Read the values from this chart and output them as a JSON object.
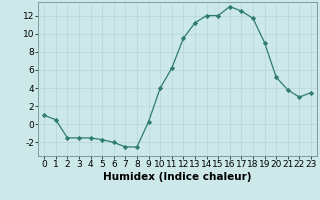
{
  "x": [
    0,
    1,
    2,
    3,
    4,
    5,
    6,
    7,
    8,
    9,
    10,
    11,
    12,
    13,
    14,
    15,
    16,
    17,
    18,
    19,
    20,
    21,
    22,
    23
  ],
  "y": [
    1,
    0.5,
    -1.5,
    -1.5,
    -1.5,
    -1.7,
    -2,
    -2.5,
    -2.5,
    0.3,
    4,
    6.2,
    9.5,
    11.2,
    12,
    12,
    13,
    12.5,
    11.7,
    9,
    5.2,
    3.8,
    3,
    3.5
  ],
  "line_color": "#2e7d6e",
  "marker_color": "#2e7d6e",
  "bg_color": "#cce8e8",
  "grid_color": "#b8d4d4",
  "xlabel": "Humidex (Indice chaleur)",
  "xlim": [
    -0.5,
    23.5
  ],
  "ylim": [
    -3.5,
    13.5
  ],
  "yticks": [
    -2,
    0,
    2,
    4,
    6,
    8,
    10,
    12
  ],
  "xticks": [
    0,
    1,
    2,
    3,
    4,
    5,
    6,
    7,
    8,
    9,
    10,
    11,
    12,
    13,
    14,
    15,
    16,
    17,
    18,
    19,
    20,
    21,
    22,
    23
  ],
  "xlabel_fontsize": 7.5,
  "tick_fontsize": 6.5
}
